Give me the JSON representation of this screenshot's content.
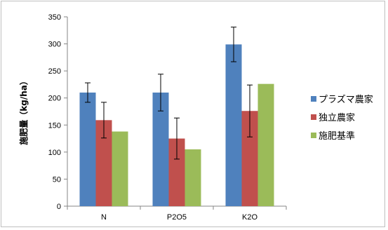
{
  "chart_data": {
    "type": "bar",
    "title": "",
    "xlabel": "",
    "ylabel": "施肥量（kg/ha）",
    "ylim": [
      0,
      350
    ],
    "yticks": [
      0,
      50,
      100,
      150,
      200,
      250,
      300,
      350
    ],
    "categories": [
      "N",
      "P2O5",
      "K2O"
    ],
    "series": [
      {
        "name": "プラズマ農家",
        "color": "#4f81bd",
        "values": [
          210,
          210,
          299
        ],
        "errors": [
          18,
          34,
          32
        ]
      },
      {
        "name": "独立農家",
        "color": "#c0504d",
        "values": [
          159,
          125,
          176
        ],
        "errors": [
          33,
          38,
          48
        ]
      },
      {
        "name": "施肥基準",
        "color": "#9bbb59",
        "values": [
          138,
          105,
          226
        ],
        "errors": [
          null,
          null,
          null
        ]
      }
    ],
    "legend_position": "right",
    "grid": false
  }
}
